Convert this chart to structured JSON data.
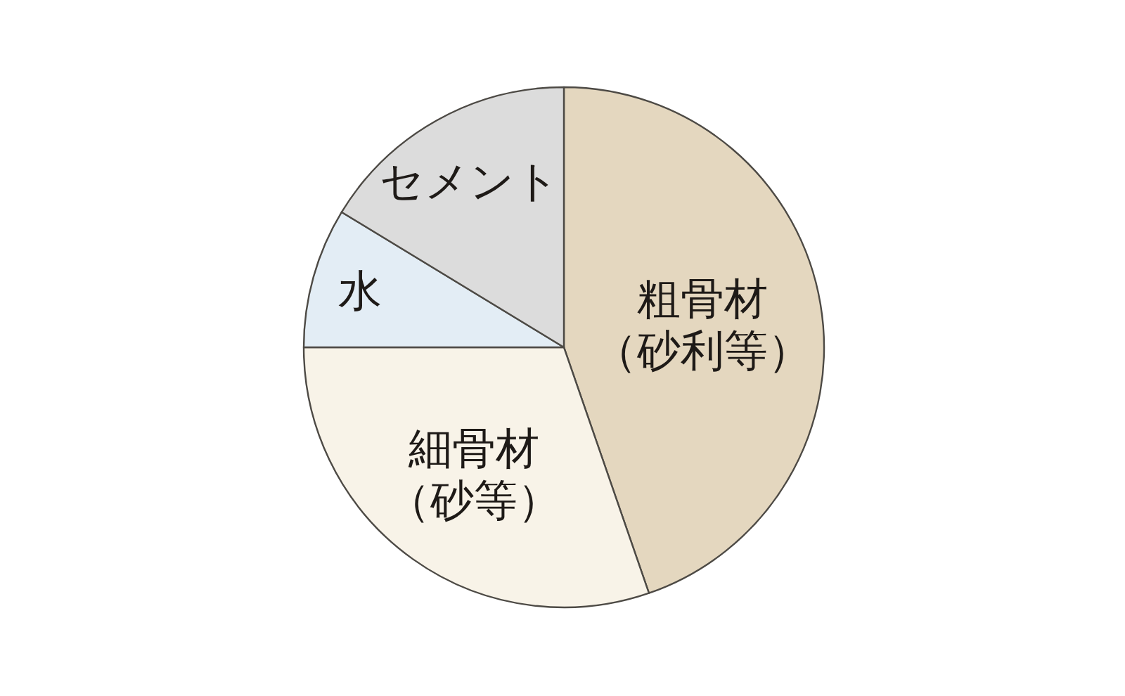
{
  "chart_data": {
    "type": "pie",
    "categories": [
      "粗骨材（砂利等）",
      "細骨材（砂等）",
      "水",
      "セメント"
    ],
    "values": [
      44.7,
      30.3,
      8.7,
      16.3
    ],
    "colors": [
      "#e4d7bf",
      "#f8f3e8",
      "#e3edf5",
      "#dcdcdc"
    ]
  }
}
